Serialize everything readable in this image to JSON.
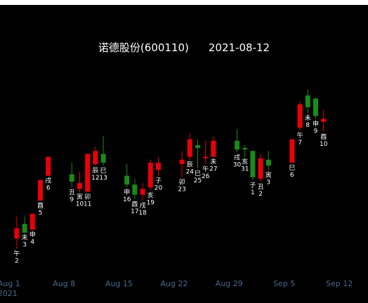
{
  "chart_data": {
    "type": "candlestick",
    "title": "诺德股份(600110)",
    "date": "2021-08-12",
    "colors": {
      "background": "#000000",
      "up": "#e8000b",
      "down": "#1a8a1a",
      "label": "#ffffff",
      "tick": "#4a6a8a"
    },
    "x_ticks": [
      "Aug 1",
      "Aug 8",
      "Aug 15",
      "Aug 22",
      "Aug 29",
      "Sep 5",
      "Sep 12"
    ],
    "x_tick_day": [
      1,
      8,
      15,
      22,
      29,
      36,
      43
    ],
    "x_tick_sub": "2021",
    "ylim": [
      0,
      100
    ],
    "candles": [
      {
        "day": 2,
        "o": 12,
        "h": 27,
        "l": 5,
        "c": 19,
        "lbl1": "午",
        "lbl2": "2"
      },
      {
        "day": 3,
        "o": 22,
        "h": 27,
        "l": 16,
        "c": 16,
        "lbl1": "未",
        "lbl2": "3"
      },
      {
        "day": 4,
        "o": 18,
        "h": 29,
        "l": 18,
        "c": 29,
        "lbl1": "申",
        "lbl2": "4"
      },
      {
        "day": 5,
        "o": 38,
        "h": 52,
        "l": 38,
        "c": 52,
        "lbl1": "酉",
        "lbl2": "5"
      },
      {
        "day": 6,
        "o": 55,
        "h": 68,
        "l": 55,
        "c": 68,
        "lbl1": "戌",
        "lbl2": "6"
      },
      {
        "day": 9,
        "o": 56,
        "h": 64,
        "l": 47,
        "c": 51,
        "lbl1": "丑",
        "lbl2": "9"
      },
      {
        "day": 10,
        "o": 46,
        "h": 58,
        "l": 44,
        "c": 50,
        "lbl1": "寅",
        "lbl2": "10"
      },
      {
        "day": 11,
        "o": 44,
        "h": 70,
        "l": 44,
        "c": 70,
        "lbl1": "卯",
        "lbl2": "11"
      },
      {
        "day": 12,
        "o": 63,
        "h": 75,
        "l": 62,
        "c": 72,
        "lbl1": "辰",
        "lbl2": "12"
      },
      {
        "day": 13,
        "o": 70,
        "h": 82,
        "l": 62,
        "c": 64,
        "lbl1": "巳",
        "lbl2": "13"
      },
      {
        "day": 16,
        "o": 55,
        "h": 63,
        "l": 47,
        "c": 49,
        "lbl1": "申",
        "lbl2": "16"
      },
      {
        "day": 17,
        "o": 49,
        "h": 53,
        "l": 39,
        "c": 42,
        "lbl1": "酉",
        "lbl2": "17"
      },
      {
        "day": 18,
        "o": 42,
        "h": 50,
        "l": 38,
        "c": 46,
        "lbl1": "戌",
        "lbl2": "18"
      },
      {
        "day": 19,
        "o": 47,
        "h": 66,
        "l": 45,
        "c": 64,
        "lbl1": "亥",
        "lbl2": "19"
      },
      {
        "day": 20,
        "o": 59,
        "h": 68,
        "l": 55,
        "c": 64,
        "lbl1": "子",
        "lbl2": "20"
      },
      {
        "day": 23,
        "o": 63,
        "h": 72,
        "l": 54,
        "c": 66,
        "lbl1": "卯",
        "lbl2": "23"
      },
      {
        "day": 24,
        "o": 68,
        "h": 84,
        "l": 66,
        "c": 80,
        "lbl1": "辰",
        "lbl2": "24"
      },
      {
        "day": 25,
        "o": 76,
        "h": 80,
        "l": 60,
        "c": 74,
        "lbl1": "巳",
        "lbl2": "25"
      },
      {
        "day": 26,
        "o": 67,
        "h": 79,
        "l": 63,
        "c": 68,
        "lbl1": "午",
        "lbl2": "26"
      },
      {
        "day": 27,
        "o": 68,
        "h": 82,
        "l": 68,
        "c": 79,
        "lbl1": "未",
        "lbl2": "27"
      },
      {
        "day": 30,
        "o": 79,
        "h": 87,
        "l": 71,
        "c": 73,
        "lbl1": "戌",
        "lbl2": "30"
      },
      {
        "day": 31,
        "o": 74,
        "h": 76,
        "l": 68,
        "c": 73,
        "lbl1": "亥",
        "lbl2": "31"
      },
      {
        "day": 32,
        "o": 72,
        "h": 72,
        "l": 52,
        "c": 54,
        "lbl1": "子",
        "lbl2": "1"
      },
      {
        "day": 33,
        "o": 53,
        "h": 70,
        "l": 51,
        "c": 67,
        "lbl1": "丑",
        "lbl2": "2"
      },
      {
        "day": 34,
        "o": 66,
        "h": 72,
        "l": 59,
        "c": 62,
        "lbl1": "寅",
        "lbl2": "3"
      },
      {
        "day": 37,
        "o": 64,
        "h": 80,
        "l": 64,
        "c": 80,
        "lbl1": "巳",
        "lbl2": "6"
      },
      {
        "day": 38,
        "o": 88,
        "h": 106,
        "l": 86,
        "c": 104,
        "lbl1": "午",
        "lbl2": "7"
      },
      {
        "day": 39,
        "o": 110,
        "h": 114,
        "l": 98,
        "c": 102,
        "lbl1": "未",
        "lbl2": "8"
      },
      {
        "day": 40,
        "o": 108,
        "h": 108,
        "l": 94,
        "c": 96,
        "lbl1": "申",
        "lbl2": "9"
      },
      {
        "day": 41,
        "o": 92,
        "h": 100,
        "l": 85,
        "c": 94,
        "lbl1": "酉",
        "lbl2": "10"
      }
    ]
  }
}
